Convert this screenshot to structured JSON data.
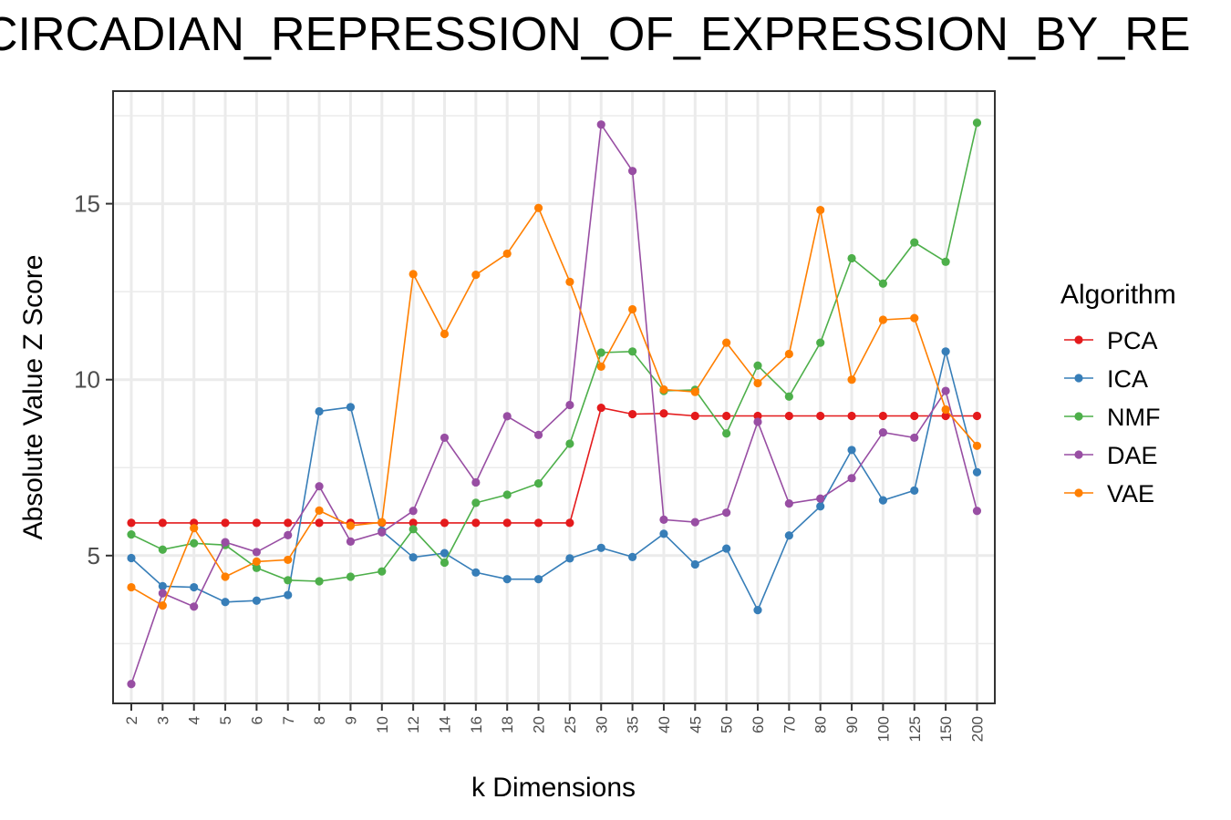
{
  "chart_data": {
    "type": "line",
    "title": "CIRCADIAN_REPRESSION_OF_EXPRESSION_BY_RE",
    "xlabel": "k Dimensions",
    "ylabel": "Absolute Value Z Score",
    "categories": [
      "2",
      "3",
      "4",
      "5",
      "6",
      "7",
      "8",
      "9",
      "10",
      "12",
      "14",
      "16",
      "18",
      "20",
      "25",
      "30",
      "35",
      "40",
      "45",
      "50",
      "60",
      "70",
      "80",
      "90",
      "100",
      "125",
      "150",
      "200"
    ],
    "y_ticks": [
      5,
      10,
      15
    ],
    "ylim": [
      0.8,
      18.2
    ],
    "grid": true,
    "legend_title": "Algorithm",
    "legend_position": "right",
    "series": [
      {
        "name": "PCA",
        "color": "#e41a1c",
        "values": [
          5.93,
          5.93,
          5.93,
          5.93,
          5.93,
          5.93,
          5.93,
          5.93,
          5.93,
          5.93,
          5.93,
          5.93,
          5.93,
          5.93,
          5.93,
          9.2,
          9.02,
          9.04,
          8.97,
          8.97,
          8.97,
          8.97,
          8.97,
          8.97,
          8.97,
          8.97,
          8.97,
          8.97
        ]
      },
      {
        "name": "ICA",
        "color": "#377eb8",
        "values": [
          4.93,
          4.13,
          4.1,
          3.68,
          3.72,
          3.88,
          9.1,
          9.22,
          5.7,
          4.95,
          5.07,
          4.52,
          4.33,
          4.33,
          4.92,
          5.22,
          4.96,
          5.62,
          4.75,
          5.2,
          3.45,
          5.57,
          6.4,
          8.0,
          6.57,
          6.85,
          10.8,
          7.37
        ]
      },
      {
        "name": "NMF",
        "color": "#4daf4a",
        "values": [
          5.6,
          5.17,
          5.35,
          5.3,
          4.65,
          4.3,
          4.27,
          4.4,
          4.55,
          5.75,
          4.8,
          6.5,
          6.73,
          7.05,
          8.18,
          10.77,
          10.8,
          9.68,
          9.71,
          8.47,
          10.4,
          9.52,
          11.05,
          13.45,
          12.73,
          13.9,
          13.35,
          17.3
        ]
      },
      {
        "name": "DAE",
        "color": "#984ea3",
        "values": [
          1.35,
          3.93,
          3.55,
          5.38,
          5.1,
          5.58,
          6.97,
          5.4,
          5.66,
          6.27,
          8.35,
          7.08,
          8.96,
          8.43,
          9.28,
          17.25,
          15.93,
          6.02,
          5.95,
          6.22,
          8.8,
          6.48,
          6.62,
          7.2,
          8.5,
          8.35,
          9.68,
          6.27
        ]
      },
      {
        "name": "VAE",
        "color": "#ff7f00",
        "values": [
          4.1,
          3.58,
          5.78,
          4.4,
          4.83,
          4.88,
          6.28,
          5.85,
          5.95,
          13.0,
          11.3,
          12.98,
          13.58,
          14.88,
          12.78,
          10.37,
          12.0,
          9.72,
          9.65,
          11.05,
          9.9,
          10.73,
          14.82,
          10.0,
          11.7,
          11.75,
          9.15,
          8.12
        ]
      }
    ]
  }
}
